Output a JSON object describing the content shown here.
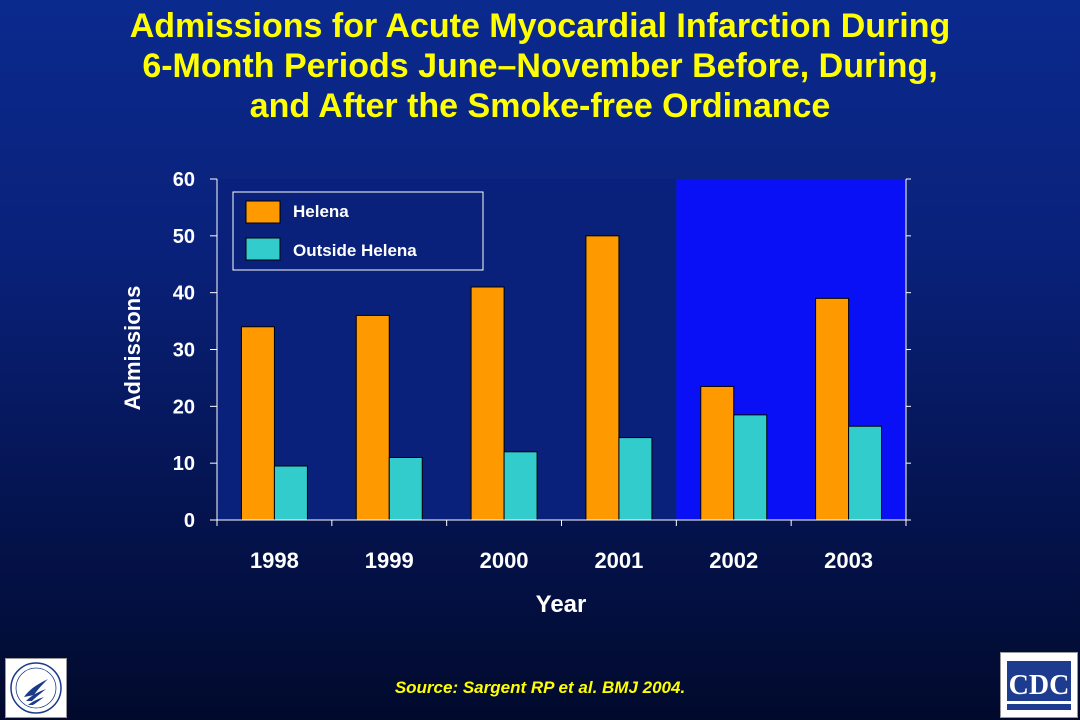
{
  "title_lines": [
    "Admissions for Acute Myocardial Infarction During",
    "6-Month Periods June–November Before, During,",
    "and After the Smoke-free Ordinance"
  ],
  "source": "Source: Sargent RP et al. BMJ 2004.",
  "colors": {
    "helena": "#ff9900",
    "outside": "#33cccc",
    "plot_bg": "#09217a",
    "highlight_bg": "#0a10f5",
    "text": "#ffffff",
    "title": "#ffff00"
  },
  "logos": {
    "left": "hhs-eagle-icon",
    "right": "cdc-logo-icon",
    "right_text": "CDC"
  },
  "chart_data": {
    "type": "bar",
    "xlabel": "Year",
    "ylabel": "Admissions",
    "ylim": [
      0,
      60
    ],
    "yticks": [
      0,
      10,
      20,
      30,
      40,
      50,
      60
    ],
    "categories": [
      "1998",
      "1999",
      "2000",
      "2001",
      "2002",
      "2003"
    ],
    "series": [
      {
        "name": "Helena",
        "values": [
          34,
          36,
          41,
          50,
          23.5,
          39
        ]
      },
      {
        "name": "Outside Helena",
        "values": [
          9.5,
          11,
          12,
          14.5,
          18.5,
          16.5
        ]
      }
    ],
    "highlight_categories": [
      "2002",
      "2003"
    ],
    "legend_position": "top-left",
    "grid": false
  }
}
